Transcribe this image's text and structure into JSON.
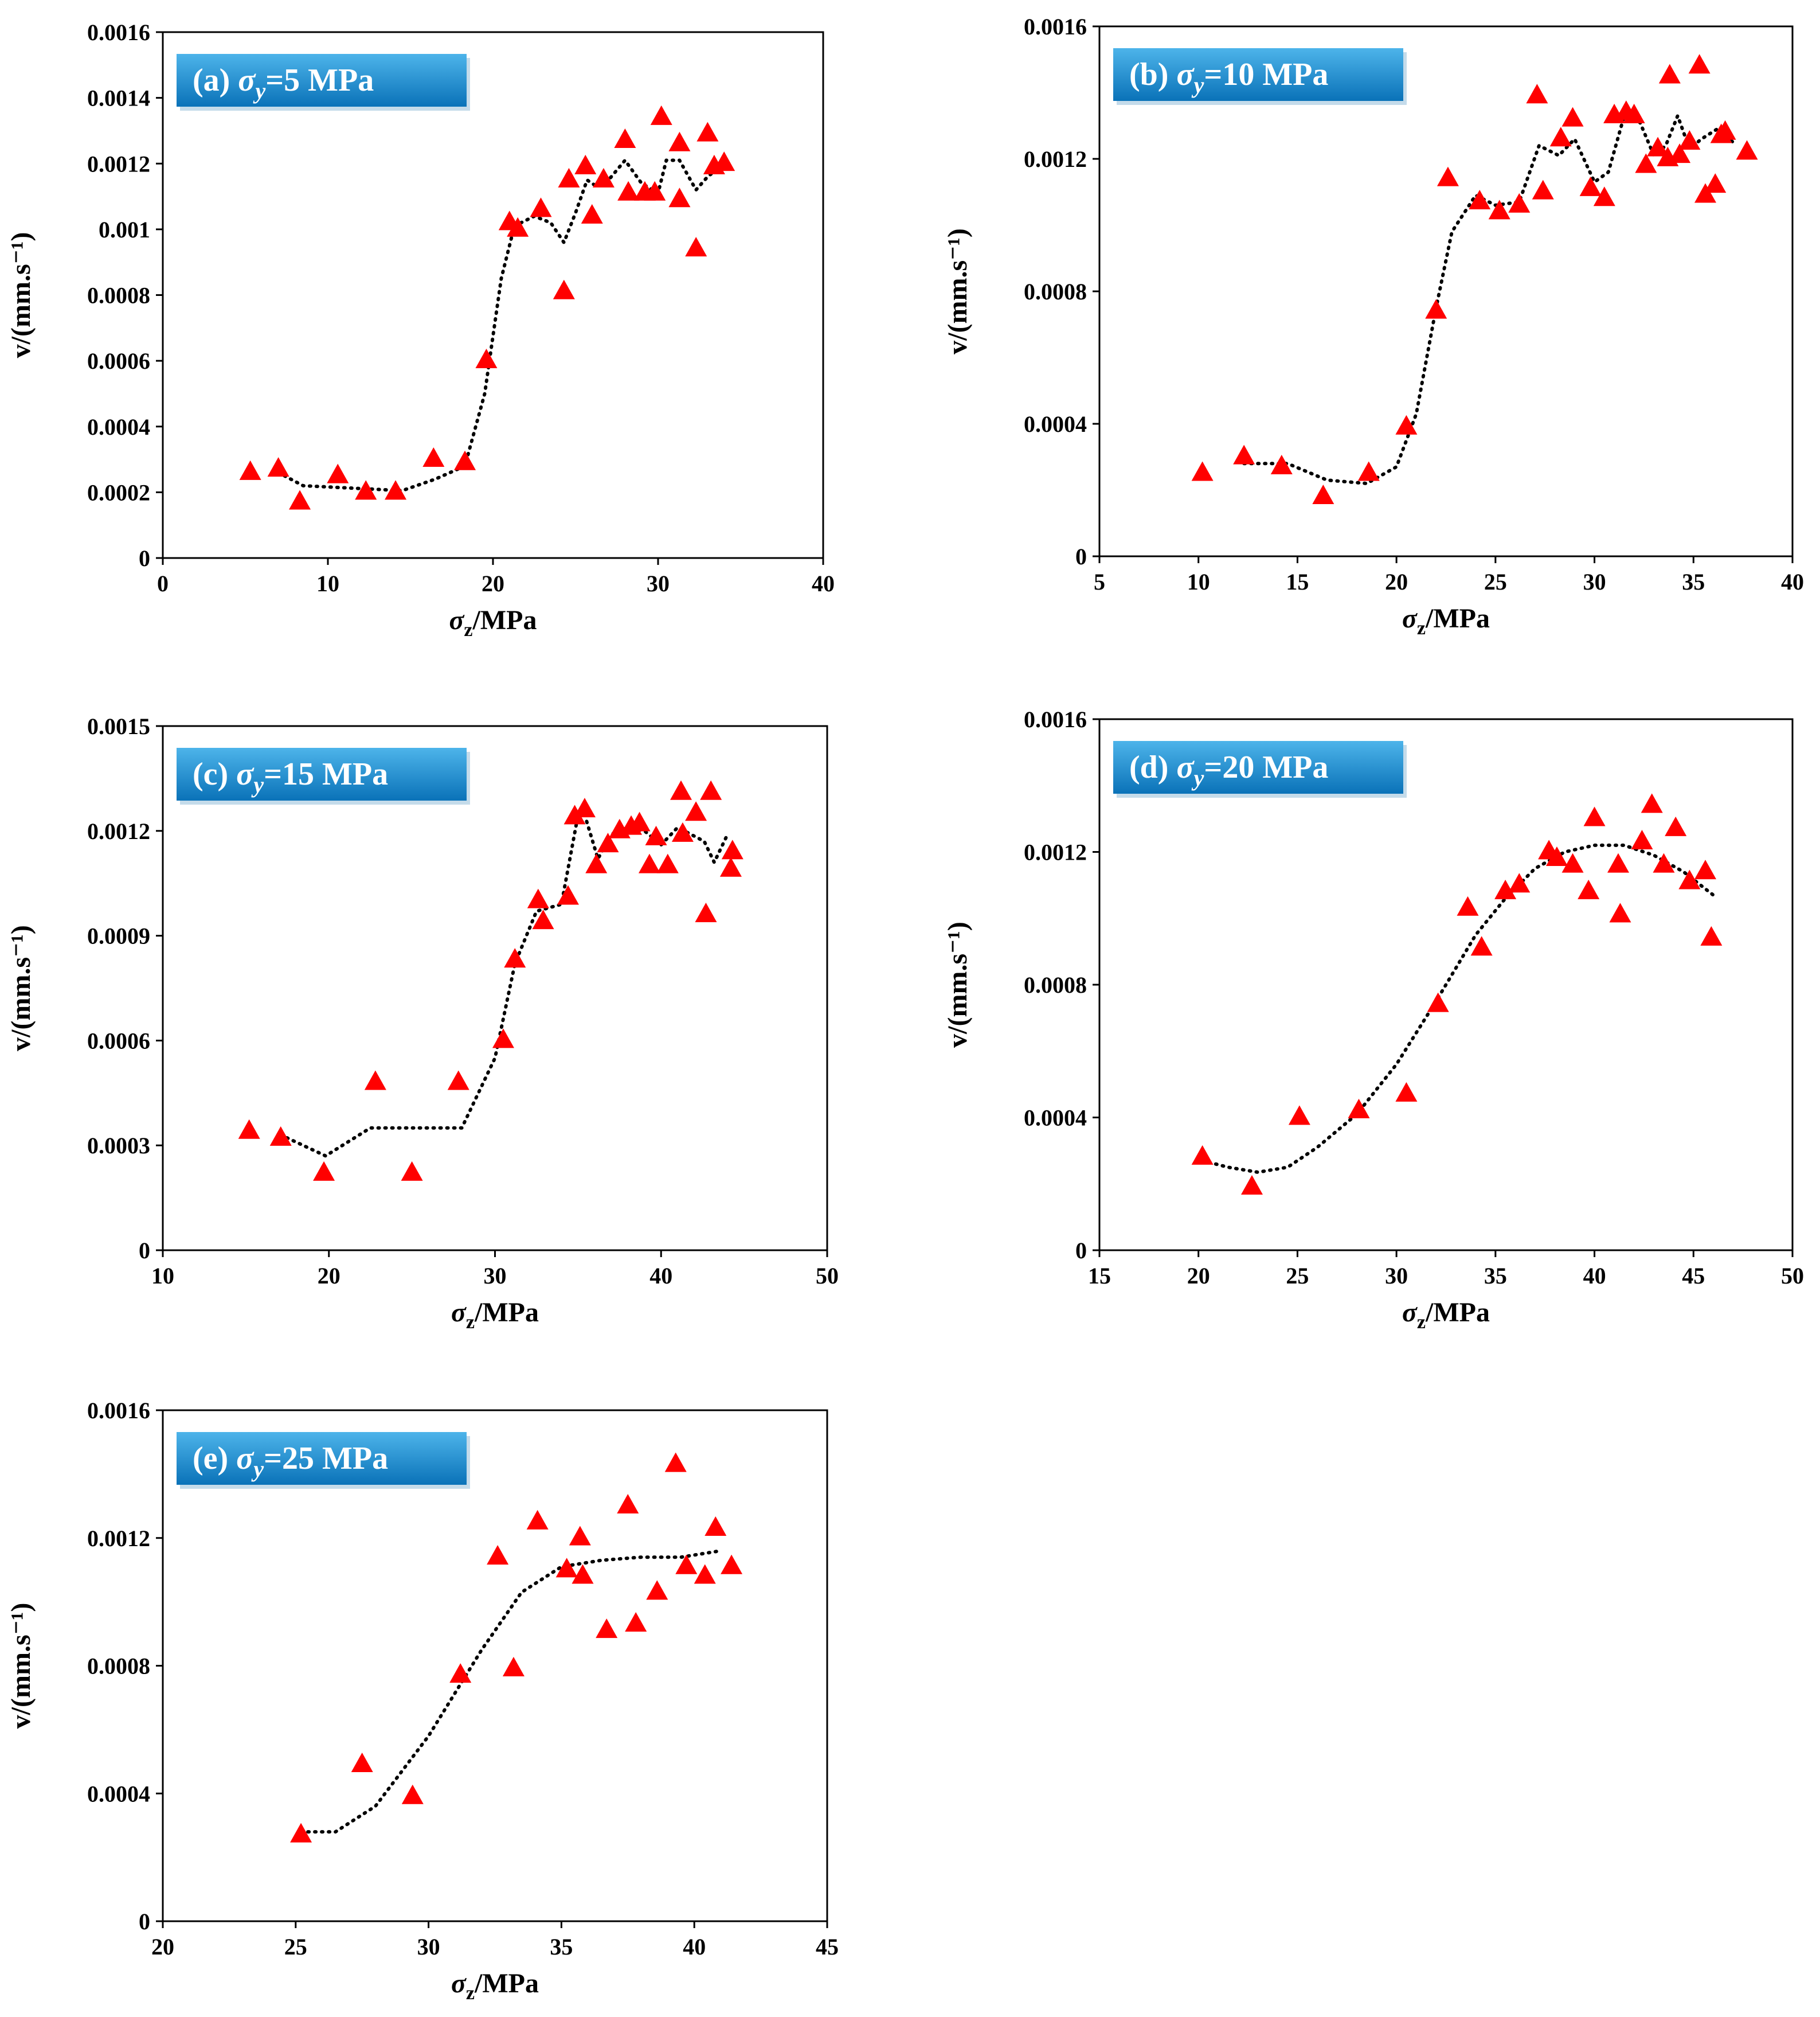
{
  "figure": {
    "panel_count": 5
  },
  "style": {
    "marker_color": "#ff0000",
    "trend_color": "#000000",
    "badge_top": "#4db4ea",
    "badge_bottom": "#0a72b8"
  },
  "chart_data": [
    {
      "type": "scatter",
      "id": "a",
      "badge": {
        "prefix": "(a) ",
        "sigma": "σ",
        "sub": "y",
        "value": "=5 MPa"
      },
      "xlabel": {
        "sigma": "σ",
        "sub": "z",
        "unit": "/MPa"
      },
      "ylabel": "v/(mm.s⁻¹)",
      "xlim": [
        0,
        40
      ],
      "ylim": [
        0,
        0.0016
      ],
      "xticks": [
        0,
        10,
        20,
        30,
        40
      ],
      "yticks": [
        0,
        0.0002,
        0.0004,
        0.0006,
        0.0008,
        0.001,
        0.0012,
        0.0014,
        0.0016
      ],
      "ytick_labels": [
        "0",
        "0.0002",
        "0.0004",
        "0.0006",
        "0.0008",
        "0.001",
        "0.0012",
        "0.0014",
        "0.0016"
      ],
      "points": [
        [
          5.3,
          0.00026
        ],
        [
          7,
          0.00027
        ],
        [
          8.3,
          0.00017
        ],
        [
          10.6,
          0.00025
        ],
        [
          12.3,
          0.0002
        ],
        [
          14.1,
          0.0002
        ],
        [
          16.4,
          0.0003
        ],
        [
          18.3,
          0.00029
        ],
        [
          19.6,
          0.0006
        ],
        [
          21,
          0.00102
        ],
        [
          21.5,
          0.001
        ],
        [
          22.9,
          0.00106
        ],
        [
          24.3,
          0.00081
        ],
        [
          24.6,
          0.00115
        ],
        [
          25.6,
          0.00119
        ],
        [
          26,
          0.00104
        ],
        [
          26.7,
          0.00115
        ],
        [
          28,
          0.00127
        ],
        [
          28.2,
          0.00111
        ],
        [
          29.2,
          0.00111
        ],
        [
          29.8,
          0.00111
        ],
        [
          30.2,
          0.00134
        ],
        [
          31.3,
          0.00126
        ],
        [
          31.3,
          0.00109
        ],
        [
          32.3,
          0.00094
        ],
        [
          33,
          0.00129
        ],
        [
          33.4,
          0.00119
        ],
        [
          34,
          0.0012
        ]
      ],
      "trend": [
        [
          7,
          0.00026
        ],
        [
          8.5,
          0.00022
        ],
        [
          10.5,
          0.000215
        ],
        [
          12.5,
          0.00021
        ],
        [
          14.5,
          0.000205
        ],
        [
          16.5,
          0.00024
        ],
        [
          18.3,
          0.00028
        ],
        [
          19.5,
          0.0005
        ],
        [
          20.5,
          0.00085
        ],
        [
          21.3,
          0.00101
        ],
        [
          22.5,
          0.00104
        ],
        [
          23.5,
          0.00102
        ],
        [
          24.3,
          0.00096
        ],
        [
          25,
          0.00105
        ],
        [
          25.7,
          0.00115
        ],
        [
          26.3,
          0.00113
        ],
        [
          27,
          0.00115
        ],
        [
          28,
          0.00121
        ],
        [
          29,
          0.00114
        ],
        [
          30,
          0.00111
        ],
        [
          30.5,
          0.00121
        ],
        [
          31.3,
          0.00121
        ],
        [
          32.3,
          0.00112
        ],
        [
          33,
          0.00116
        ],
        [
          34,
          0.0012
        ]
      ]
    },
    {
      "type": "scatter",
      "id": "b",
      "badge": {
        "prefix": "(b) ",
        "sigma": "σ",
        "sub": "y",
        "value": "=10 MPa"
      },
      "xlabel": {
        "sigma": "σ",
        "sub": "z",
        "unit": "/MPa"
      },
      "ylabel": "v/(mm.s⁻¹)",
      "xlim": [
        5,
        40
      ],
      "ylim": [
        0,
        0.0016
      ],
      "xticks": [
        5,
        10,
        15,
        20,
        25,
        30,
        35,
        40
      ],
      "yticks": [
        0,
        0.0004,
        0.0008,
        0.0012,
        0.0016
      ],
      "ytick_labels": [
        "0",
        "0.0004",
        "0.0008",
        "0.0012",
        "0.0016"
      ],
      "points": [
        [
          10.2,
          0.00025
        ],
        [
          12.3,
          0.0003
        ],
        [
          14.2,
          0.00027
        ],
        [
          16.3,
          0.00018
        ],
        [
          18.6,
          0.00025
        ],
        [
          20.5,
          0.00039
        ],
        [
          22,
          0.00074
        ],
        [
          22.6,
          0.00114
        ],
        [
          24.2,
          0.00107
        ],
        [
          25.2,
          0.00104
        ],
        [
          26.2,
          0.00106
        ],
        [
          27.1,
          0.00139
        ],
        [
          27.4,
          0.0011
        ],
        [
          28.3,
          0.00126
        ],
        [
          28.9,
          0.00132
        ],
        [
          29.8,
          0.00111
        ],
        [
          30.5,
          0.00108
        ],
        [
          31,
          0.00133
        ],
        [
          31.6,
          0.00134
        ],
        [
          32,
          0.00133
        ],
        [
          32.6,
          0.00118
        ],
        [
          33.2,
          0.00123
        ],
        [
          33.8,
          0.00145
        ],
        [
          33.7,
          0.0012
        ],
        [
          34.3,
          0.00121
        ],
        [
          34.8,
          0.00125
        ],
        [
          35.3,
          0.00148
        ],
        [
          35.6,
          0.00109
        ],
        [
          36.1,
          0.00112
        ],
        [
          36.4,
          0.00127
        ],
        [
          36.6,
          0.00128
        ],
        [
          37.7,
          0.00122
        ]
      ],
      "trend": [
        [
          12.3,
          0.00028
        ],
        [
          14.5,
          0.00028
        ],
        [
          16.5,
          0.00023
        ],
        [
          18.5,
          0.00022
        ],
        [
          20,
          0.00027
        ],
        [
          21,
          0.00043
        ],
        [
          22,
          0.00075
        ],
        [
          22.8,
          0.00098
        ],
        [
          24,
          0.00109
        ],
        [
          25,
          0.00106
        ],
        [
          26.2,
          0.00107
        ],
        [
          27.2,
          0.00124
        ],
        [
          28.2,
          0.00121
        ],
        [
          29,
          0.00126
        ],
        [
          30,
          0.00113
        ],
        [
          30.7,
          0.00116
        ],
        [
          31.5,
          0.00133
        ],
        [
          32.3,
          0.00131
        ],
        [
          33,
          0.00121
        ],
        [
          33.6,
          0.00124
        ],
        [
          34.2,
          0.00133
        ],
        [
          34.8,
          0.00123
        ],
        [
          35.4,
          0.00126
        ],
        [
          36.2,
          0.00129
        ],
        [
          37,
          0.00125
        ]
      ]
    },
    {
      "type": "scatter",
      "id": "c",
      "badge": {
        "prefix": "(c) ",
        "sigma": "σ",
        "sub": "y",
        "value": "=15 MPa"
      },
      "xlabel": {
        "sigma": "σ",
        "sub": "z",
        "unit": "/MPa"
      },
      "ylabel": "v/(mm.s⁻¹)",
      "xlim": [
        10,
        50
      ],
      "ylim": [
        0,
        0.0015
      ],
      "xticks": [
        10,
        20,
        30,
        40,
        50
      ],
      "yticks": [
        0,
        0.0003,
        0.0006,
        0.0009,
        0.0012,
        0.0015
      ],
      "ytick_labels": [
        "0",
        "0.0003",
        "0.0006",
        "0.0009",
        "0.0012",
        "0.0015"
      ],
      "points": [
        [
          15.2,
          0.00034
        ],
        [
          17.1,
          0.00032
        ],
        [
          19.7,
          0.00022
        ],
        [
          22.8,
          0.00048
        ],
        [
          25,
          0.00022
        ],
        [
          27.8,
          0.00048
        ],
        [
          30.5,
          0.0006
        ],
        [
          31.2,
          0.00083
        ],
        [
          32.6,
          0.001
        ],
        [
          32.9,
          0.00094
        ],
        [
          34.4,
          0.00101
        ],
        [
          34.8,
          0.00124
        ],
        [
          35.4,
          0.00126
        ],
        [
          36.1,
          0.0011
        ],
        [
          36.8,
          0.00116
        ],
        [
          37.5,
          0.0012
        ],
        [
          38.2,
          0.00121
        ],
        [
          38.7,
          0.00122
        ],
        [
          39.3,
          0.0011
        ],
        [
          39.7,
          0.00118
        ],
        [
          40.4,
          0.0011
        ],
        [
          41.2,
          0.00131
        ],
        [
          41.3,
          0.00119
        ],
        [
          42.1,
          0.00125
        ],
        [
          42.7,
          0.00096
        ],
        [
          43,
          0.00131
        ],
        [
          44.2,
          0.00109
        ],
        [
          44.3,
          0.00114
        ]
      ],
      "trend": [
        [
          17.1,
          0.00033
        ],
        [
          19.8,
          0.00027
        ],
        [
          22.5,
          0.00035
        ],
        [
          25,
          0.00035
        ],
        [
          28,
          0.00035
        ],
        [
          30,
          0.00055
        ],
        [
          31.2,
          0.00082
        ],
        [
          32.5,
          0.00097
        ],
        [
          34,
          0.00099
        ],
        [
          34.9,
          0.00122
        ],
        [
          35.5,
          0.00123
        ],
        [
          36.2,
          0.00112
        ],
        [
          37,
          0.00119
        ],
        [
          38,
          0.00121
        ],
        [
          39,
          0.0012
        ],
        [
          40,
          0.00116
        ],
        [
          41,
          0.00121
        ],
        [
          41.8,
          0.00119
        ],
        [
          42.6,
          0.00117
        ],
        [
          43.2,
          0.00111
        ],
        [
          44,
          0.00119
        ]
      ]
    },
    {
      "type": "scatter",
      "id": "d",
      "badge": {
        "prefix": "(d) ",
        "sigma": "σ",
        "sub": "y",
        "value": "=20 MPa"
      },
      "xlabel": {
        "sigma": "σ",
        "sub": "z",
        "unit": "/MPa"
      },
      "ylabel": "v/(mm.s⁻¹)",
      "xlim": [
        15,
        50
      ],
      "ylim": [
        0,
        0.0016
      ],
      "xticks": [
        15,
        20,
        25,
        30,
        35,
        40,
        45,
        50
      ],
      "yticks": [
        0,
        0.0004,
        0.0008,
        0.0012,
        0.0016
      ],
      "ytick_labels": [
        "0",
        "0.0004",
        "0.0008",
        "0.0012",
        "0.0016"
      ],
      "points": [
        [
          20.2,
          0.00028
        ],
        [
          22.7,
          0.00019
        ],
        [
          25.1,
          0.0004
        ],
        [
          28.1,
          0.00042
        ],
        [
          30.5,
          0.00047
        ],
        [
          32.1,
          0.00074
        ],
        [
          33.6,
          0.00103
        ],
        [
          34.3,
          0.00091
        ],
        [
          35.5,
          0.00108
        ],
        [
          36.2,
          0.0011
        ],
        [
          37.7,
          0.0012
        ],
        [
          38.1,
          0.00118
        ],
        [
          38.9,
          0.00116
        ],
        [
          39.7,
          0.00108
        ],
        [
          40,
          0.0013
        ],
        [
          41.2,
          0.00116
        ],
        [
          41.3,
          0.00101
        ],
        [
          42.4,
          0.00123
        ],
        [
          42.9,
          0.00134
        ],
        [
          43.5,
          0.00116
        ],
        [
          44.1,
          0.00127
        ],
        [
          44.8,
          0.00111
        ],
        [
          45.6,
          0.00114
        ],
        [
          45.9,
          0.00094
        ]
      ],
      "trend": [
        [
          20.2,
          0.00027
        ],
        [
          21.5,
          0.00025
        ],
        [
          23,
          0.000235
        ],
        [
          24.5,
          0.00025
        ],
        [
          26,
          0.00031
        ],
        [
          28,
          0.00041
        ],
        [
          30,
          0.00056
        ],
        [
          32,
          0.00075
        ],
        [
          34,
          0.00095
        ],
        [
          35.5,
          0.00106
        ],
        [
          37,
          0.00115
        ],
        [
          38.5,
          0.0012
        ],
        [
          40,
          0.00122
        ],
        [
          41.5,
          0.00122
        ],
        [
          43,
          0.00119
        ],
        [
          44.5,
          0.00114
        ],
        [
          46,
          0.00107
        ]
      ]
    },
    {
      "type": "scatter",
      "id": "e",
      "badge": {
        "prefix": "(e) ",
        "sigma": "σ",
        "sub": "y",
        "value": "=25 MPa"
      },
      "xlabel": {
        "sigma": "σ",
        "sub": "z",
        "unit": "/MPa"
      },
      "ylabel": "v/(mm.s⁻¹)",
      "xlim": [
        20,
        45
      ],
      "ylim": [
        0,
        0.0016
      ],
      "xticks": [
        20,
        25,
        30,
        35,
        40,
        45
      ],
      "yticks": [
        0,
        0.0004,
        0.0008,
        0.0012,
        0.0016
      ],
      "ytick_labels": [
        "0",
        "0.0004",
        "0.0008",
        "0.0012",
        "0.0016"
      ],
      "points": [
        [
          25.2,
          0.00027
        ],
        [
          27.5,
          0.00049
        ],
        [
          29.4,
          0.00039
        ],
        [
          31.2,
          0.00077
        ],
        [
          32.6,
          0.00114
        ],
        [
          33.2,
          0.00079
        ],
        [
          34.1,
          0.00125
        ],
        [
          35.2,
          0.0011
        ],
        [
          35.7,
          0.0012
        ],
        [
          35.8,
          0.00108
        ],
        [
          36.7,
          0.00091
        ],
        [
          37.5,
          0.0013
        ],
        [
          37.8,
          0.00093
        ],
        [
          38.6,
          0.00103
        ],
        [
          39.3,
          0.00143
        ],
        [
          39.7,
          0.00111
        ],
        [
          40.4,
          0.00108
        ],
        [
          40.8,
          0.00123
        ],
        [
          41.4,
          0.00111
        ]
      ],
      "trend": [
        [
          25.2,
          0.00028
        ],
        [
          26.5,
          0.00028
        ],
        [
          28,
          0.00036
        ],
        [
          30,
          0.00058
        ],
        [
          32,
          0.00085
        ],
        [
          33.5,
          0.00103
        ],
        [
          35,
          0.00111
        ],
        [
          36.5,
          0.00113
        ],
        [
          38,
          0.00114
        ],
        [
          39.5,
          0.00114
        ],
        [
          41,
          0.00116
        ]
      ]
    }
  ]
}
